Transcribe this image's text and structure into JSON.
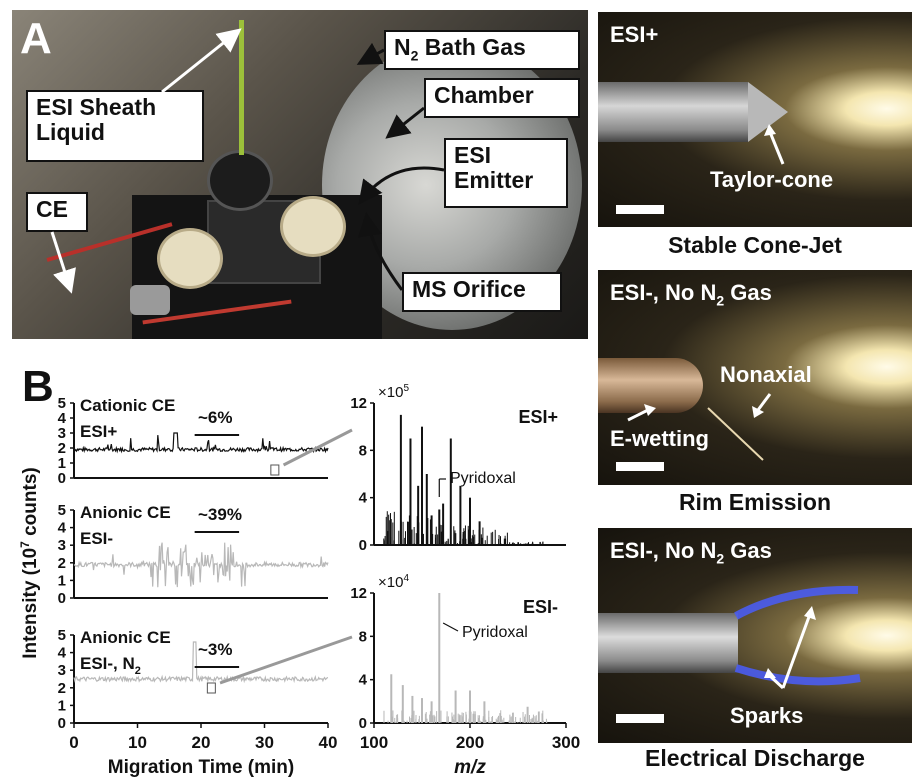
{
  "panel_a": {
    "letter": "A",
    "labels": {
      "n2": "N",
      "n2_sub": "2",
      "n2_rest": " Bath Gas",
      "chamber": "Chamber",
      "esi_emitter_1": "ESI",
      "esi_emitter_2": "Emitter",
      "ms_orifice": "MS Orifice",
      "sheath_1": "ESI Sheath",
      "sheath_2": "Liquid",
      "ce": "CE"
    }
  },
  "panel_b": {
    "letter": "B",
    "ylabel_main": "Intensity (10",
    "ylabel_sup": "7",
    "ylabel_end": " counts)",
    "xlabel_left": "Migration Time (min)",
    "xlabel_right": "m/z",
    "traces": [
      {
        "line1": "Cationic CE",
        "line2": "ESI+",
        "pct": "~6%"
      },
      {
        "line1": "Anionic CE",
        "line2": "ESI-",
        "pct": "~39%"
      },
      {
        "line1": "Anionic CE",
        "line2": "ESI-, N",
        "line2_sub": "2",
        "pct": "~3%"
      }
    ],
    "spectra": [
      {
        "mode": "ESI+",
        "exp": "×10",
        "exp_sup": "5",
        "annotation": "Pyridoxal"
      },
      {
        "mode": "ESI-",
        "exp": "×10",
        "exp_sup": "4",
        "annotation": "Pyridoxal"
      }
    ],
    "y_ticks": [
      "0",
      "1",
      "2",
      "3",
      "4",
      "5"
    ],
    "x_ticks_time": [
      "0",
      "10",
      "20",
      "30",
      "40"
    ],
    "spec_y_ticks": [
      "0",
      "4",
      "8",
      "12"
    ],
    "x_ticks_mz": [
      "100",
      "200",
      "300"
    ]
  },
  "panel_c": [
    {
      "mode": "ESI+",
      "annot": "Taylor-cone",
      "caption": "Stable Cone-Jet"
    },
    {
      "mode": "ESI-, No N",
      "mode_sub": "2",
      "mode_end": " Gas",
      "annot1": "Nonaxial",
      "annot2": "E-wetting",
      "caption": "Rim Emission"
    },
    {
      "mode": "ESI-, No N",
      "mode_sub": "2",
      "mode_end": " Gas",
      "annot": "Sparks",
      "caption": "Electrical Discharge"
    }
  ],
  "chart_data": [
    {
      "type": "line",
      "title": "",
      "xlabel": "Migration Time (min)",
      "ylabel": "Intensity (10^7 counts)",
      "xlim": [
        0,
        40
      ],
      "ylim": [
        0,
        5
      ],
      "series": [
        {
          "name": "Cationic CE ESI+",
          "baseline": 1.9
        },
        {
          "name": "Anionic CE ESI-",
          "baseline": 1.9
        },
        {
          "name": "Anionic CE ESI-, N2",
          "baseline": 2.5
        }
      ]
    },
    {
      "type": "bar",
      "title": "",
      "xlabel": "m/z",
      "ylabel": "×10^5",
      "xlim": [
        100,
        300
      ],
      "ylim": [
        0,
        12
      ],
      "series": [
        {
          "name": "ESI+",
          "x": [
            128,
            138,
            146,
            150,
            155,
            160,
            168,
            172,
            180,
            190,
            200,
            210
          ],
          "values": [
            11,
            9,
            5,
            10,
            6,
            2.5,
            3,
            3.5,
            9,
            5,
            4,
            2
          ]
        }
      ]
    },
    {
      "type": "bar",
      "title": "",
      "xlabel": "m/z",
      "ylabel": "×10^4",
      "xlim": [
        100,
        300
      ],
      "ylim": [
        0,
        12
      ],
      "series": [
        {
          "name": "ESI-",
          "x": [
            118,
            130,
            140,
            150,
            160,
            168,
            185,
            200,
            215,
            260
          ],
          "values": [
            4.5,
            3.5,
            2.5,
            2.3,
            2,
            12,
            3,
            3,
            2,
            1.5
          ]
        }
      ]
    }
  ]
}
